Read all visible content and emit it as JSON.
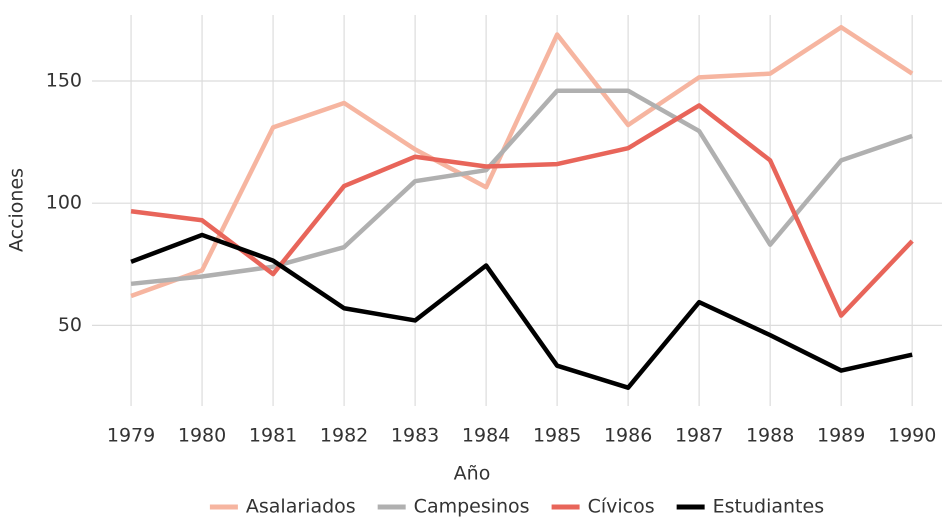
{
  "chart_data": {
    "type": "line",
    "x": [
      1979,
      1980,
      1981,
      1982,
      1983,
      1984,
      1985,
      1986,
      1987,
      1988,
      1989,
      1990
    ],
    "series": [
      {
        "name": "Asalariados",
        "color": "#f6b5a0",
        "values": [
          62,
          72.5,
          131,
          141,
          122,
          106.5,
          169,
          132,
          151.5,
          153,
          172,
          153
        ]
      },
      {
        "name": "Campesinos",
        "color": "#b0b0b0",
        "values": [
          67,
          70,
          74,
          82,
          109,
          113.5,
          146,
          146,
          129.5,
          83,
          117.5,
          127.5
        ]
      },
      {
        "name": "Cívicos",
        "color": "#e8655a",
        "values": [
          96.7,
          93,
          71,
          107,
          119,
          115,
          116,
          122.5,
          140,
          117.5,
          54,
          84.5
        ]
      },
      {
        "name": "Estudiantes",
        "color": "#000000",
        "values": [
          76,
          87,
          76.5,
          57,
          52,
          74.5,
          33.5,
          24.5,
          59.5,
          46,
          31.5,
          38
        ]
      }
    ],
    "xlabel": "Año",
    "ylabel": "Acciones",
    "xlim": [
      1978.45,
      1990.42
    ],
    "ylim": [
      17,
      177
    ],
    "xticks": [
      1979,
      1980,
      1981,
      1982,
      1983,
      1984,
      1985,
      1986,
      1987,
      1988,
      1989,
      1990
    ],
    "yticks": [
      50,
      100,
      150
    ],
    "grid": true,
    "legend": "bottom"
  }
}
